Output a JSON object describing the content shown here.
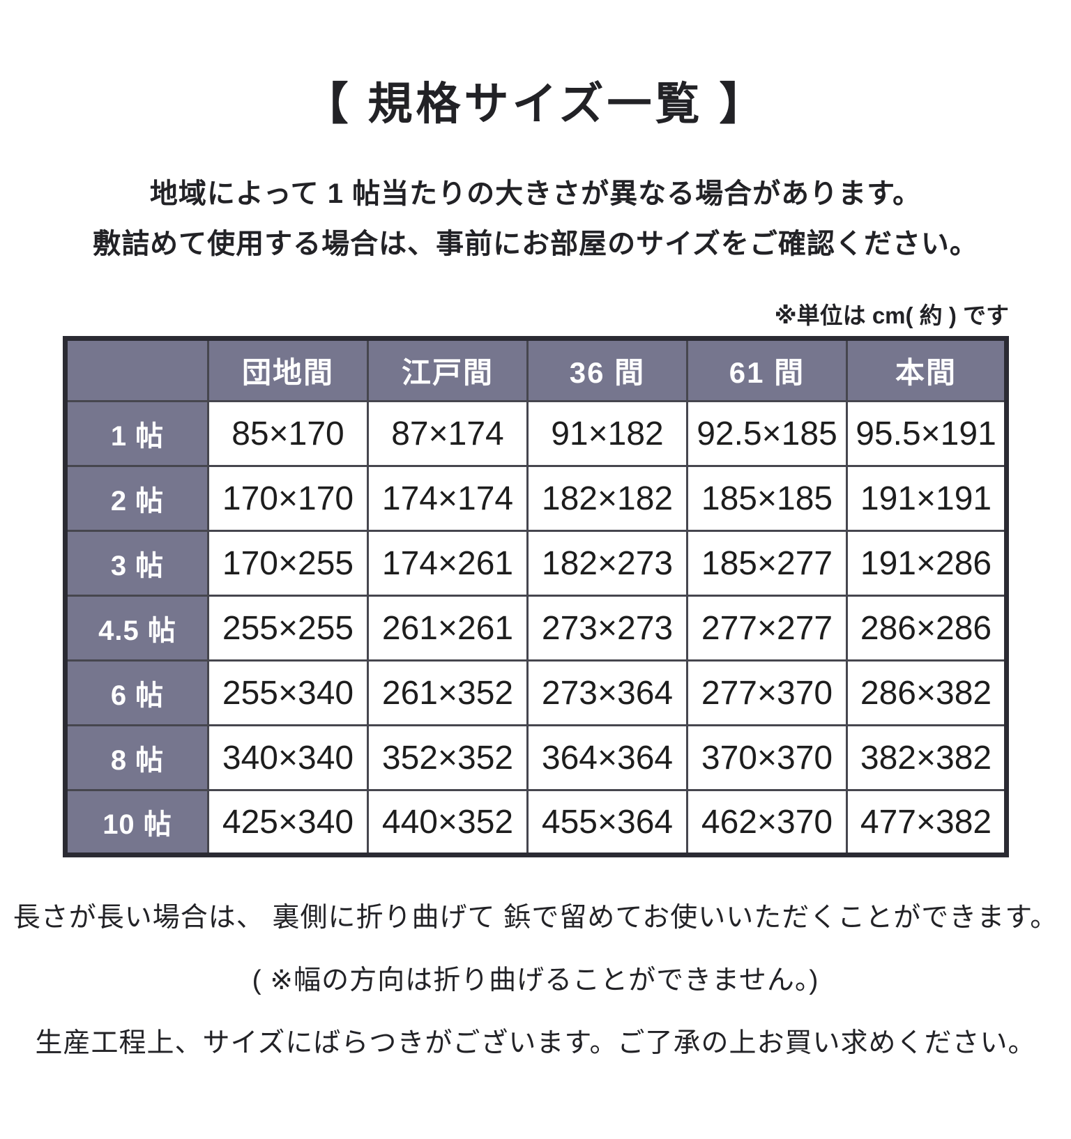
{
  "title": "【 規格サイズ一覧 】",
  "description": {
    "line1": "地域によって 1 帖当たりの大きさが異なる場合があります。",
    "line2": "敷詰めて使用する場合は、事前にお部屋のサイズをご確認ください。"
  },
  "unit_note": "※単位は cm( 約 ) です",
  "table": {
    "corner_label": "",
    "columns": [
      "団地間",
      "江戸間",
      "36 間",
      "61 間",
      "本間"
    ],
    "rows": [
      {
        "label": "1 帖",
        "values": [
          "85×170",
          "87×174",
          "91×182",
          "92.5×185",
          "95.5×191"
        ]
      },
      {
        "label": "2 帖",
        "values": [
          "170×170",
          "174×174",
          "182×182",
          "185×185",
          "191×191"
        ]
      },
      {
        "label": "3 帖",
        "values": [
          "170×255",
          "174×261",
          "182×273",
          "185×277",
          "191×286"
        ]
      },
      {
        "label": "4.5 帖",
        "values": [
          "255×255",
          "261×261",
          "273×273",
          "277×277",
          "286×286"
        ]
      },
      {
        "label": "6 帖",
        "values": [
          "255×340",
          "261×352",
          "273×364",
          "277×370",
          "286×382"
        ]
      },
      {
        "label": "8 帖",
        "values": [
          "340×340",
          "352×352",
          "364×364",
          "370×370",
          "382×382"
        ]
      },
      {
        "label": "10 帖",
        "values": [
          "425×340",
          "440×352",
          "455×364",
          "462×370",
          "477×382"
        ]
      }
    ]
  },
  "footer": {
    "line1": "長さが長い場合は、 裏側に折り曲げて 鋲で留めてお使いいただくことができます。",
    "line2": "( ※幅の方向は折り曲げることができません。)",
    "line3": "生産工程上、サイズにばらつきがございます。ご了承の上お買い求めください。"
  },
  "colors": {
    "header_bg": "#76768E",
    "border_dark": "#2B2B33",
    "border_inner": "#46464E",
    "text": "#1D1D1D"
  }
}
